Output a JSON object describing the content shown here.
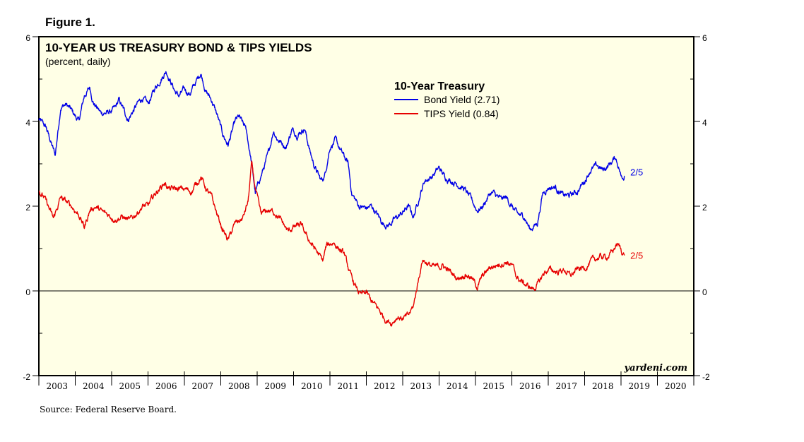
{
  "figure_label": "Figure 1.",
  "source": "Source: Federal Reserve Board.",
  "colors": {
    "background": "#ffffe6",
    "bond": "#0000e6",
    "tips": "#e60000"
  },
  "chart_data": {
    "type": "line",
    "title": "10-YEAR US TREASURY BOND & TIPS YIELDS",
    "subtitle": "(percent, daily)",
    "credit": "yardeni.com",
    "legend": {
      "title": "10-Year Treasury",
      "position": "top-center",
      "entries": [
        "Bond Yield (2.71)",
        "TIPS Yield (0.84)"
      ]
    },
    "xlim": [
      2003,
      2021
    ],
    "ylim": [
      -2,
      6
    ],
    "y_ticks": [
      -2,
      0,
      2,
      4,
      6
    ],
    "x_tick_labels": [
      "2003",
      "2004",
      "2005",
      "2006",
      "2007",
      "2008",
      "2009",
      "2010",
      "2011",
      "2012",
      "2013",
      "2014",
      "2015",
      "2016",
      "2017",
      "2018",
      "2019",
      "2020"
    ],
    "zero_line": true,
    "grid": false,
    "series": [
      {
        "name": "Bond Yield (2.71)",
        "color": "#0000e6",
        "end_label": "2/5",
        "end_value": 2.71,
        "points": [
          [
            2003.0,
            4.05
          ],
          [
            2003.2,
            3.85
          ],
          [
            2003.45,
            3.2
          ],
          [
            2003.6,
            4.35
          ],
          [
            2003.75,
            4.4
          ],
          [
            2003.9,
            4.25
          ],
          [
            2004.1,
            4.0
          ],
          [
            2004.25,
            4.6
          ],
          [
            2004.4,
            4.8
          ],
          [
            2004.5,
            4.45
          ],
          [
            2004.7,
            4.2
          ],
          [
            2004.9,
            4.2
          ],
          [
            2005.1,
            4.3
          ],
          [
            2005.2,
            4.5
          ],
          [
            2005.45,
            4.05
          ],
          [
            2005.7,
            4.4
          ],
          [
            2005.85,
            4.55
          ],
          [
            2006.0,
            4.4
          ],
          [
            2006.2,
            4.8
          ],
          [
            2006.5,
            5.2
          ],
          [
            2006.75,
            4.7
          ],
          [
            2006.85,
            4.6
          ],
          [
            2007.0,
            4.75
          ],
          [
            2007.15,
            4.65
          ],
          [
            2007.45,
            5.15
          ],
          [
            2007.6,
            4.7
          ],
          [
            2007.75,
            4.5
          ],
          [
            2007.9,
            4.15
          ],
          [
            2008.05,
            3.7
          ],
          [
            2008.2,
            3.45
          ],
          [
            2008.4,
            4.0
          ],
          [
            2008.5,
            4.1
          ],
          [
            2008.7,
            3.8
          ],
          [
            2008.85,
            3.0
          ],
          [
            2008.95,
            2.3
          ],
          [
            2009.1,
            2.7
          ],
          [
            2009.3,
            3.2
          ],
          [
            2009.45,
            3.8
          ],
          [
            2009.55,
            3.6
          ],
          [
            2009.8,
            3.4
          ],
          [
            2009.95,
            3.8
          ],
          [
            2010.1,
            3.7
          ],
          [
            2010.3,
            3.85
          ],
          [
            2010.45,
            3.3
          ],
          [
            2010.55,
            3.0
          ],
          [
            2010.75,
            2.6
          ],
          [
            2010.85,
            2.7
          ],
          [
            2011.0,
            3.4
          ],
          [
            2011.15,
            3.55
          ],
          [
            2011.3,
            3.3
          ],
          [
            2011.5,
            3.0
          ],
          [
            2011.6,
            2.3
          ],
          [
            2011.8,
            2.0
          ],
          [
            2012.0,
            1.95
          ],
          [
            2012.15,
            2.0
          ],
          [
            2012.3,
            1.8
          ],
          [
            2012.45,
            1.6
          ],
          [
            2012.6,
            1.55
          ],
          [
            2012.8,
            1.7
          ],
          [
            2013.0,
            1.85
          ],
          [
            2013.15,
            2.0
          ],
          [
            2013.3,
            1.75
          ],
          [
            2013.45,
            2.2
          ],
          [
            2013.6,
            2.6
          ],
          [
            2013.8,
            2.7
          ],
          [
            2014.0,
            2.9
          ],
          [
            2014.15,
            2.7
          ],
          [
            2014.35,
            2.6
          ],
          [
            2014.55,
            2.5
          ],
          [
            2014.7,
            2.4
          ],
          [
            2014.85,
            2.2
          ],
          [
            2015.05,
            1.9
          ],
          [
            2015.2,
            2.0
          ],
          [
            2015.4,
            2.3
          ],
          [
            2015.5,
            2.3
          ],
          [
            2015.7,
            2.15
          ],
          [
            2015.85,
            2.2
          ],
          [
            2016.0,
            2.0
          ],
          [
            2016.15,
            1.8
          ],
          [
            2016.35,
            1.75
          ],
          [
            2016.5,
            1.45
          ],
          [
            2016.7,
            1.6
          ],
          [
            2016.85,
            2.3
          ],
          [
            2017.0,
            2.45
          ],
          [
            2017.2,
            2.45
          ],
          [
            2017.4,
            2.25
          ],
          [
            2017.6,
            2.25
          ],
          [
            2017.8,
            2.35
          ],
          [
            2018.0,
            2.6
          ],
          [
            2018.15,
            2.85
          ],
          [
            2018.35,
            2.95
          ],
          [
            2018.5,
            2.85
          ],
          [
            2018.7,
            3.0
          ],
          [
            2018.85,
            3.15
          ],
          [
            2018.95,
            2.9
          ],
          [
            2019.0,
            2.7
          ],
          [
            2019.1,
            2.71
          ]
        ]
      },
      {
        "name": "TIPS Yield (0.84)",
        "color": "#e60000",
        "end_label": "2/5",
        "end_value": 0.84,
        "points": [
          [
            2003.0,
            2.35
          ],
          [
            2003.15,
            2.2
          ],
          [
            2003.4,
            1.7
          ],
          [
            2003.6,
            2.2
          ],
          [
            2003.75,
            2.1
          ],
          [
            2003.9,
            2.0
          ],
          [
            2004.1,
            1.8
          ],
          [
            2004.25,
            1.5
          ],
          [
            2004.4,
            1.9
          ],
          [
            2004.55,
            2.0
          ],
          [
            2004.75,
            1.85
          ],
          [
            2004.9,
            1.8
          ],
          [
            2005.1,
            1.7
          ],
          [
            2005.3,
            1.75
          ],
          [
            2005.5,
            1.65
          ],
          [
            2005.7,
            1.85
          ],
          [
            2005.85,
            2.0
          ],
          [
            2006.0,
            2.0
          ],
          [
            2006.2,
            2.3
          ],
          [
            2006.45,
            2.55
          ],
          [
            2006.6,
            2.4
          ],
          [
            2006.8,
            2.4
          ],
          [
            2007.0,
            2.4
          ],
          [
            2007.2,
            2.35
          ],
          [
            2007.45,
            2.7
          ],
          [
            2007.6,
            2.4
          ],
          [
            2007.75,
            2.2
          ],
          [
            2007.9,
            1.8
          ],
          [
            2008.05,
            1.45
          ],
          [
            2008.2,
            1.2
          ],
          [
            2008.4,
            1.6
          ],
          [
            2008.6,
            1.7
          ],
          [
            2008.75,
            2.1
          ],
          [
            2008.85,
            3.0
          ],
          [
            2008.95,
            2.4
          ],
          [
            2009.1,
            1.8
          ],
          [
            2009.3,
            1.9
          ],
          [
            2009.5,
            1.85
          ],
          [
            2009.7,
            1.6
          ],
          [
            2009.85,
            1.4
          ],
          [
            2010.0,
            1.5
          ],
          [
            2010.2,
            1.55
          ],
          [
            2010.35,
            1.3
          ],
          [
            2010.5,
            1.1
          ],
          [
            2010.7,
            0.85
          ],
          [
            2010.8,
            0.7
          ],
          [
            2010.9,
            1.05
          ],
          [
            2011.1,
            1.15
          ],
          [
            2011.25,
            1.0
          ],
          [
            2011.4,
            0.85
          ],
          [
            2011.55,
            0.4
          ],
          [
            2011.7,
            0.1
          ],
          [
            2011.85,
            -0.1
          ],
          [
            2012.0,
            -0.05
          ],
          [
            2012.15,
            -0.25
          ],
          [
            2012.35,
            -0.45
          ],
          [
            2012.5,
            -0.65
          ],
          [
            2012.7,
            -0.75
          ],
          [
            2012.85,
            -0.6
          ],
          [
            2013.0,
            -0.65
          ],
          [
            2013.15,
            -0.6
          ],
          [
            2013.3,
            -0.35
          ],
          [
            2013.45,
            0.35
          ],
          [
            2013.55,
            0.75
          ],
          [
            2013.75,
            0.6
          ],
          [
            2013.9,
            0.55
          ],
          [
            2014.1,
            0.6
          ],
          [
            2014.3,
            0.45
          ],
          [
            2014.5,
            0.3
          ],
          [
            2014.7,
            0.4
          ],
          [
            2014.85,
            0.35
          ],
          [
            2015.05,
            0.1
          ],
          [
            2015.2,
            0.35
          ],
          [
            2015.4,
            0.55
          ],
          [
            2015.55,
            0.6
          ],
          [
            2015.7,
            0.65
          ],
          [
            2015.85,
            0.7
          ],
          [
            2016.0,
            0.6
          ],
          [
            2016.15,
            0.3
          ],
          [
            2016.3,
            0.2
          ],
          [
            2016.45,
            0.1
          ],
          [
            2016.6,
            0.05
          ],
          [
            2016.75,
            0.2
          ],
          [
            2016.9,
            0.45
          ],
          [
            2017.05,
            0.5
          ],
          [
            2017.25,
            0.45
          ],
          [
            2017.45,
            0.5
          ],
          [
            2017.6,
            0.35
          ],
          [
            2017.8,
            0.5
          ],
          [
            2018.0,
            0.55
          ],
          [
            2018.2,
            0.7
          ],
          [
            2018.4,
            0.8
          ],
          [
            2018.6,
            0.8
          ],
          [
            2018.75,
            0.9
          ],
          [
            2018.88,
            1.1
          ],
          [
            2018.95,
            1.05
          ],
          [
            2019.05,
            0.9
          ],
          [
            2019.1,
            0.84
          ]
        ]
      }
    ]
  }
}
